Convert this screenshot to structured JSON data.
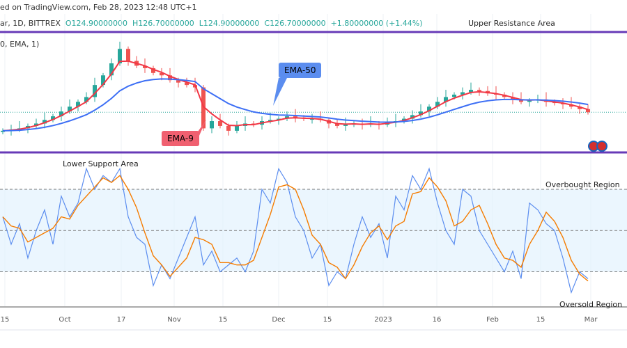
{
  "header": {
    "published": "ed on TradingView.com, Feb 28, 2023 12:48 UTC+1",
    "symbol": "ar, 1D, BITTREX",
    "open": "O124.90000000",
    "high": "H126.70000000",
    "low": "L124.90000000",
    "close": "C126.70000000",
    "change": "+1.80000000 (+1.44%)",
    "indicator": "0, EMA, 1)"
  },
  "annotations": {
    "upper": "Upper Resistance Area",
    "lower": "Lower Support Area",
    "overbought": "Overbought Region",
    "oversold": "Oversold Region",
    "ema50": "EMA-50",
    "ema9": "EMA-9"
  },
  "colors": {
    "up": "#26a69a",
    "down": "#ef5350",
    "ema9": "#f23645",
    "ema50": "#3d6ff5",
    "resistance": "#673ab7",
    "k": "#5b8def",
    "d": "#f57c00",
    "band": "#e3f2fd"
  },
  "icons": {
    "flag": "flag-icon"
  },
  "chart_data": {
    "type": "candlestick",
    "x_ticks": [
      "15",
      "Oct",
      "17",
      "Nov",
      "15",
      "Dec",
      "15",
      "2023",
      "16",
      "Feb",
      "15",
      "Mar"
    ],
    "closes": [
      119,
      119.5,
      120,
      121,
      122,
      123.5,
      125,
      127,
      129,
      131,
      133,
      138,
      142,
      147,
      153,
      148,
      146,
      145,
      143,
      142,
      140,
      139,
      138,
      137,
      120,
      123,
      121,
      119,
      121,
      122,
      121.5,
      123,
      123.5,
      124,
      125,
      124.5,
      124,
      124,
      123.5,
      122,
      121,
      121.5,
      122,
      121.5,
      122,
      121.5,
      122.5,
      123,
      124,
      125.5,
      127,
      129,
      131,
      133,
      134,
      135,
      136,
      135.5,
      134.5,
      134,
      133,
      132,
      131,
      131.5,
      132,
      131,
      130.5,
      130,
      129,
      128,
      126.7
    ],
    "oscillator": {
      "levels": [
        80,
        50,
        20
      ],
      "k": [
        60,
        40,
        55,
        30,
        50,
        65,
        40,
        75,
        60,
        70,
        95,
        80,
        90,
        85,
        95,
        60,
        45,
        40,
        10,
        25,
        15,
        30,
        45,
        60,
        25,
        35,
        20,
        25,
        30,
        20,
        35,
        80,
        70,
        95,
        85,
        60,
        50,
        30,
        40,
        10,
        20,
        15,
        40,
        60,
        45,
        55,
        30,
        75,
        65,
        90,
        80,
        95,
        70,
        50,
        40,
        80,
        75,
        50,
        40,
        30,
        20,
        35,
        15,
        70,
        65,
        55,
        50,
        30,
        5,
        20,
        15
      ]
    }
  }
}
